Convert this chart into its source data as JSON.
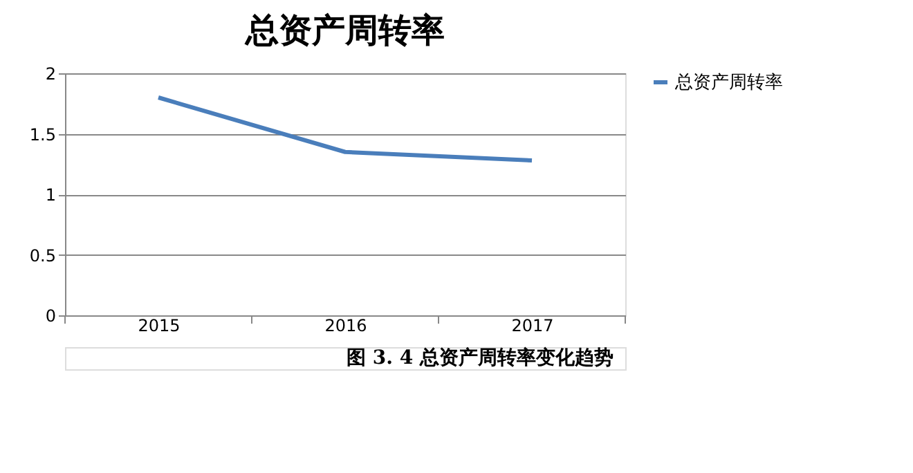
{
  "chart_data": {
    "type": "line",
    "title": "总资产周转率",
    "categories": [
      "2015",
      "2016",
      "2017"
    ],
    "series": [
      {
        "name": "总资产周转率",
        "color": "#4a7ebb",
        "values": [
          1.8,
          1.35,
          1.28
        ]
      }
    ],
    "ylim": [
      0,
      2
    ],
    "yticks": [
      0,
      0.5,
      1,
      1.5,
      2
    ],
    "grid": "y",
    "legend": "right",
    "marker": "none",
    "line_style": "solid",
    "annotations": [
      "图 3. 4 总资产周转率变化趋势"
    ]
  }
}
